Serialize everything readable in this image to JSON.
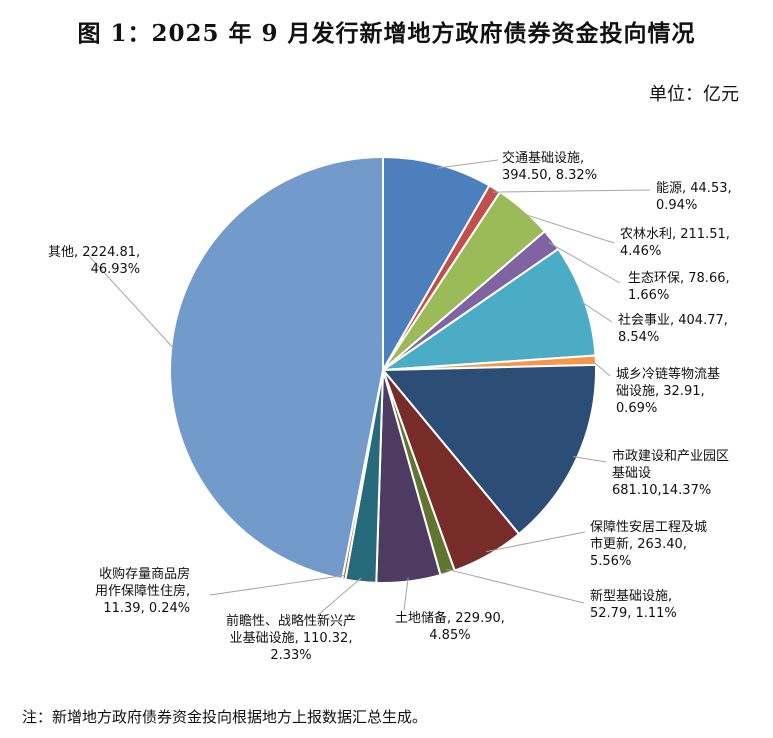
{
  "title": "图 1：2025 年 9 月发行新增地方政府债券资金投向情况",
  "unit": "单位：亿元",
  "note": "注：新增地方政府债券资金投向根据地方上报数据汇总生成。",
  "chart_data": {
    "type": "pie",
    "start_angle_deg": 90,
    "direction": "clockwise",
    "slices": [
      {
        "name": "交通基础设施",
        "value": 394.5,
        "percent": 8.32,
        "color": "#4e7fbd",
        "label_lines": [
          "交通基础设施,",
          "394.50, 8.32%"
        ]
      },
      {
        "name": "能源",
        "value": 44.53,
        "percent": 0.94,
        "color": "#c0504d",
        "label_lines": [
          "能源, 44.53,",
          "0.94%"
        ]
      },
      {
        "name": "农林水利",
        "value": 211.51,
        "percent": 4.46,
        "color": "#9bbb59",
        "label_lines": [
          "农林水利, 211.51,",
          "4.46%"
        ]
      },
      {
        "name": "生态环保",
        "value": 78.66,
        "percent": 1.66,
        "color": "#8064a2",
        "label_lines": [
          "生态环保, 78.66,",
          "1.66%"
        ]
      },
      {
        "name": "社会事业",
        "value": 404.77,
        "percent": 8.54,
        "color": "#4bacc6",
        "label_lines": [
          "社会事业, 404.77,",
          "8.54%"
        ]
      },
      {
        "name": "城乡冷链等物流基础设施",
        "value": 32.91,
        "percent": 0.69,
        "color": "#f79646",
        "label_lines": [
          "城乡冷链等物流基",
          "础设施, 32.91,",
          "0.69%"
        ]
      },
      {
        "name": "市政建设和产业园区基础设施",
        "value": 681.1,
        "percent": 14.37,
        "color": "#2c4d75",
        "label_lines": [
          "市政建设和产业园区",
          "基础设",
          "681.10,14.37%"
        ]
      },
      {
        "name": "保障性安居工程及城市更新",
        "value": 263.4,
        "percent": 5.56,
        "color": "#772c2a",
        "label_lines": [
          "保障性安居工程及城",
          "市更新, 263.40,",
          "5.56%"
        ]
      },
      {
        "name": "新型基础设施",
        "value": 52.79,
        "percent": 1.11,
        "color": "#5f7530",
        "label_lines": [
          "新型基础设施,",
          "52.79, 1.11%"
        ]
      },
      {
        "name": "土地储备",
        "value": 229.9,
        "percent": 4.85,
        "color": "#4d3b62",
        "label_lines": [
          "土地储备, 229.90,",
          "4.85%"
        ]
      },
      {
        "name": "前瞻性、战略性新兴产业基础设施",
        "value": 110.32,
        "percent": 2.33,
        "color": "#276a7c",
        "label_lines": [
          "前瞻性、战略性新兴产",
          "业基础设施, 110.32,",
          "2.33%"
        ]
      },
      {
        "name": "收购存量商品房用作保障性住房",
        "value": 11.39,
        "percent": 0.24,
        "color": "#b65708",
        "label_lines": [
          "收购存量商品房",
          "用作保障性住房,",
          "11.39, 0.24%"
        ]
      },
      {
        "name": "其他",
        "value": 2224.81,
        "percent": 46.93,
        "color": "#729aca",
        "label_lines": [
          "其他, 2224.81,",
          "46.93%"
        ]
      }
    ]
  }
}
